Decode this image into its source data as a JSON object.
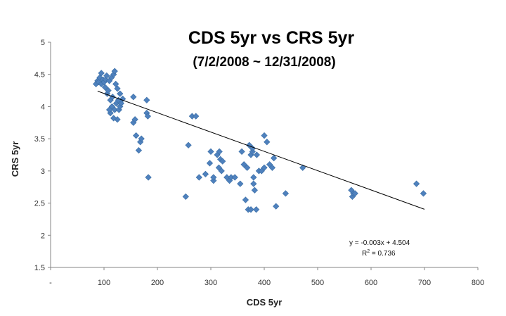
{
  "chart_data": {
    "type": "scatter",
    "title": "CDS 5yr vs CRS 5yr",
    "subtitle": "(7/2/2008 ~ 12/31/2008)",
    "xlabel": "CDS 5yr",
    "ylabel": "CRS 5yr",
    "xlim": [
      0,
      800
    ],
    "ylim": [
      1.5,
      5
    ],
    "xticks": [
      "-",
      "100",
      "200",
      "300",
      "400",
      "500",
      "600",
      "700",
      "800"
    ],
    "yticks": [
      "1.5",
      "2",
      "2.5",
      "3",
      "3.5",
      "4",
      "4.5",
      "5"
    ],
    "grid": false,
    "legend": "none",
    "marker_color": "#4f81bd",
    "trendline": {
      "slope": -0.003,
      "intercept": 4.504,
      "x_range": [
        88,
        700
      ],
      "equation": "y = -0.003x + 4.504",
      "r_squared_label": "R",
      "r_squared_sup": "2",
      "r_squared_value": " = 0.736"
    },
    "points": [
      [
        85,
        4.35
      ],
      [
        88,
        4.4
      ],
      [
        90,
        4.38
      ],
      [
        92,
        4.45
      ],
      [
        95,
        4.52
      ],
      [
        95,
        4.35
      ],
      [
        98,
        4.42
      ],
      [
        100,
        4.38
      ],
      [
        102,
        4.3
      ],
      [
        103,
        4.42
      ],
      [
        105,
        4.48
      ],
      [
        106,
        4.2
      ],
      [
        108,
        4.25
      ],
      [
        110,
        4.4
      ],
      [
        112,
        4.1
      ],
      [
        112,
        3.9
      ],
      [
        114,
        4.45
      ],
      [
        115,
        4.0
      ],
      [
        116,
        4.15
      ],
      [
        118,
        4.5
      ],
      [
        120,
        4.55
      ],
      [
        120,
        3.95
      ],
      [
        122,
        4.35
      ],
      [
        123,
        4.05
      ],
      [
        125,
        4.28
      ],
      [
        125,
        3.8
      ],
      [
        127,
        4.1
      ],
      [
        128,
        3.95
      ],
      [
        130,
        4.2
      ],
      [
        130,
        4.0
      ],
      [
        132,
        4.05
      ],
      [
        135,
        4.12
      ],
      [
        118,
        3.82
      ],
      [
        110,
        3.95
      ],
      [
        155,
        4.15
      ],
      [
        155,
        3.75
      ],
      [
        158,
        3.8
      ],
      [
        160,
        3.55
      ],
      [
        165,
        3.32
      ],
      [
        168,
        3.45
      ],
      [
        170,
        3.5
      ],
      [
        180,
        4.1
      ],
      [
        180,
        3.9
      ],
      [
        182,
        3.85
      ],
      [
        183,
        2.9
      ],
      [
        253,
        2.6
      ],
      [
        258,
        3.4
      ],
      [
        265,
        3.85
      ],
      [
        272,
        3.85
      ],
      [
        278,
        2.9
      ],
      [
        290,
        2.95
      ],
      [
        298,
        3.12
      ],
      [
        300,
        3.3
      ],
      [
        305,
        2.85
      ],
      [
        305,
        2.9
      ],
      [
        312,
        3.25
      ],
      [
        315,
        3.05
      ],
      [
        316,
        3.3
      ],
      [
        318,
        3.18
      ],
      [
        320,
        3.0
      ],
      [
        322,
        3.15
      ],
      [
        330,
        2.9
      ],
      [
        335,
        2.85
      ],
      [
        338,
        2.9
      ],
      [
        345,
        2.9
      ],
      [
        355,
        2.8
      ],
      [
        358,
        3.3
      ],
      [
        362,
        3.1
      ],
      [
        365,
        2.55
      ],
      [
        368,
        3.05
      ],
      [
        370,
        2.4
      ],
      [
        372,
        3.4
      ],
      [
        375,
        2.4
      ],
      [
        375,
        3.25
      ],
      [
        378,
        3.3
      ],
      [
        378,
        3.35
      ],
      [
        380,
        2.9
      ],
      [
        380,
        2.8
      ],
      [
        382,
        2.7
      ],
      [
        385,
        2.4
      ],
      [
        386,
        3.25
      ],
      [
        390,
        3.0
      ],
      [
        395,
        3.0
      ],
      [
        400,
        3.55
      ],
      [
        400,
        3.05
      ],
      [
        405,
        3.45
      ],
      [
        410,
        3.1
      ],
      [
        415,
        3.05
      ],
      [
        418,
        3.2
      ],
      [
        422,
        2.45
      ],
      [
        440,
        2.65
      ],
      [
        472,
        3.05
      ],
      [
        563,
        2.7
      ],
      [
        565,
        2.6
      ],
      [
        567,
        2.65
      ],
      [
        570,
        2.65
      ],
      [
        685,
        2.8
      ],
      [
        698,
        2.65
      ]
    ]
  }
}
